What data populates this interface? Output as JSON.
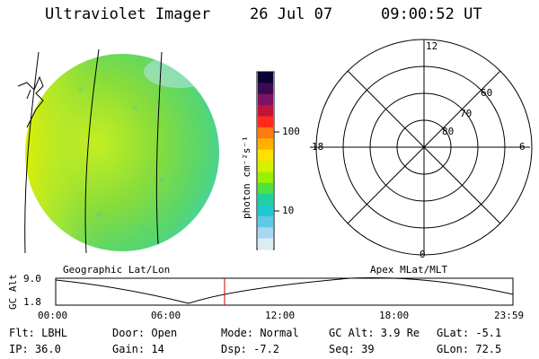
{
  "header": {
    "title": "Ultraviolet Imager",
    "date": "26 Jul 07",
    "time": "09:00:52 UT"
  },
  "colorbar": {
    "unit_label": "photon cm⁻²s⁻¹",
    "ticks": [
      "100",
      "10"
    ],
    "colors": [
      "#0d0033",
      "#3a0a52",
      "#7a1460",
      "#c0143c",
      "#ff2a1a",
      "#ff7a10",
      "#ffb000",
      "#ffe000",
      "#d8f000",
      "#9af000",
      "#50e040",
      "#20d0a0",
      "#20c8d0",
      "#60c8e8",
      "#a8d8f0",
      "#dcecf4"
    ]
  },
  "left_map": {
    "caption": "Geographic Lat/Lon"
  },
  "polar_plot": {
    "caption": "Apex MLat/MLT",
    "hour_labels": {
      "top": "12",
      "left": "18",
      "right": "6",
      "bottom": "0"
    },
    "lat_labels": [
      "60",
      "70",
      "80"
    ]
  },
  "altitude_plot": {
    "ylabel": "GC Alt",
    "yticks": [
      "9.0",
      "1.8"
    ],
    "xticks": [
      "00:00",
      "06:00",
      "12:00",
      "18:00",
      "23:59"
    ],
    "marker_color": "#cc0000"
  },
  "info": {
    "flt": "Flt: LBHL",
    "door": "Door: Open",
    "mode": "Mode: Normal",
    "gc_alt": "GC Alt: 3.9 Re",
    "glat": "GLat:  -5.1",
    "ip": "IP: 36.0",
    "gain": "Gain: 14",
    "dsp": "Dsp:   -7.2",
    "seq": "Seq: 39",
    "glon": "GLon:  72.5"
  }
}
